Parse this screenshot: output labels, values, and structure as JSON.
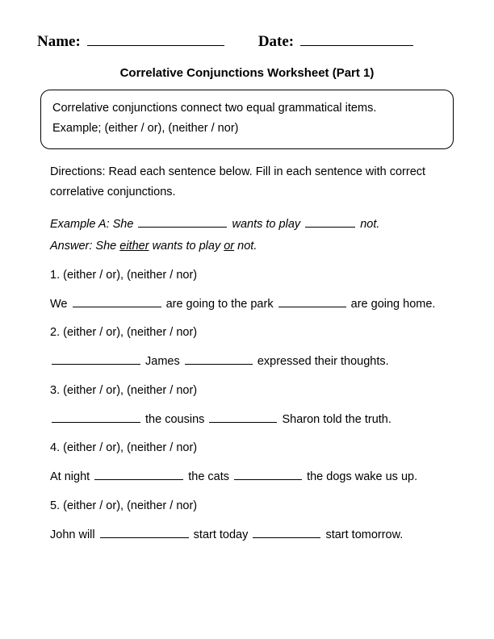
{
  "header": {
    "name_label": "Name:",
    "date_label": "Date:"
  },
  "title": "Correlative Conjunctions Worksheet (Part 1)",
  "info_box": {
    "line1": "Correlative conjunctions connect two equal grammatical items.",
    "line2": "Example; (either / or), (neither / nor)"
  },
  "directions": "Directions: Read each sentence below. Fill in each sentence with correct correlative conjunctions.",
  "example": {
    "label": "Example A: She",
    "mid": "wants to play",
    "end": "not.",
    "answer_label": "Answer: She",
    "answer_w1": "either",
    "answer_mid": "wants to play",
    "answer_w2": "or",
    "answer_end": "not."
  },
  "options_text": "(either / or), (neither / nor)",
  "questions": [
    {
      "num": "1.",
      "pre": "We",
      "mid": "are going to the park",
      "post": "are going home."
    },
    {
      "num": "2.",
      "pre": "",
      "mid": "James",
      "post": "expressed their thoughts."
    },
    {
      "num": "3.",
      "pre": "",
      "mid": "the cousins",
      "post": "Sharon told the truth."
    },
    {
      "num": "4.",
      "pre": "At night",
      "mid": "the cats",
      "post": "the dogs wake us up."
    },
    {
      "num": "5.",
      "pre": "John will",
      "mid": "start today",
      "post": "start tomorrow."
    }
  ]
}
